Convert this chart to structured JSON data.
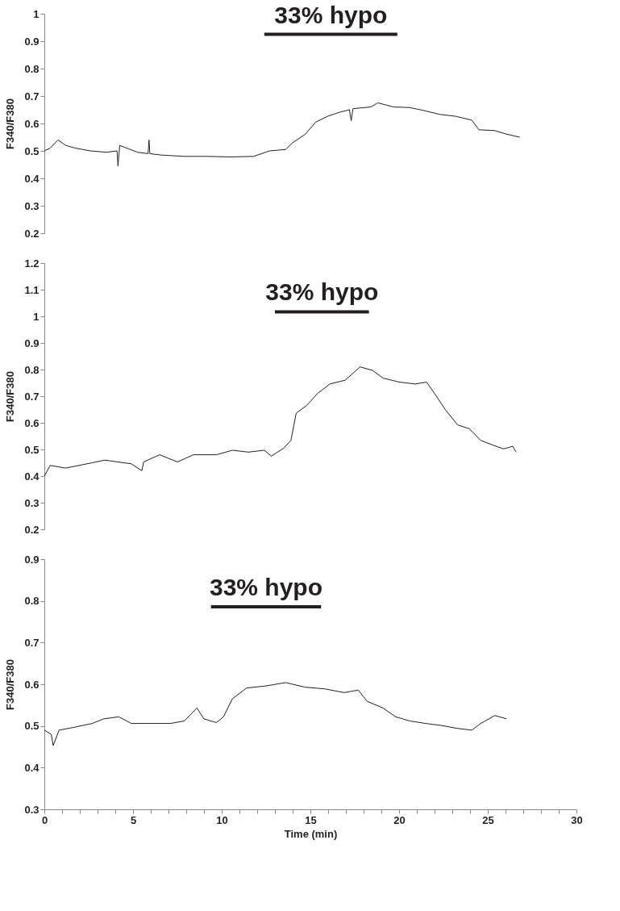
{
  "chart_data": [
    {
      "type": "line",
      "ylabel": "F340/F380",
      "xlim": [
        0,
        30
      ],
      "ylim": [
        0.2,
        1
      ],
      "yticks": [
        0.2,
        0.3,
        0.4,
        0.5,
        0.6,
        0.7,
        0.8,
        0.9,
        1
      ],
      "tick_labels": "y",
      "grid": false,
      "legend": false,
      "annotations": [
        {
          "text": "33% hypo",
          "x": 16.15,
          "y": 0.925
        }
      ],
      "series": [
        {
          "color": "#231f20",
          "x": [
            0,
            0.33,
            0.77,
            1.2,
            1.75,
            2.6,
            3.5,
            4.1,
            4.15,
            4.25,
            5.25,
            5.85,
            5.9,
            5.95,
            6.56,
            7.9,
            9.2,
            10.5,
            11.8,
            12.7,
            13.6,
            14.0,
            14.7,
            15.3,
            15.97,
            16.6,
            17.2,
            17.3,
            17.4,
            18.4,
            18.8,
            19.7,
            20.6,
            21.4,
            22.3,
            23.2,
            24.1,
            24.5,
            25.4,
            26.0,
            26.8
          ],
          "values": [
            0.5,
            0.51,
            0.54,
            0.52,
            0.51,
            0.5,
            0.495,
            0.5,
            0.445,
            0.52,
            0.495,
            0.49,
            0.54,
            0.49,
            0.485,
            0.48,
            0.48,
            0.478,
            0.48,
            0.5,
            0.505,
            0.53,
            0.56,
            0.605,
            0.626,
            0.64,
            0.65,
            0.61,
            0.654,
            0.66,
            0.675,
            0.66,
            0.658,
            0.647,
            0.633,
            0.626,
            0.612,
            0.577,
            0.574,
            0.562,
            0.55
          ]
        },
        {
          "type": "line",
          "color": "#231f20",
          "x": [
            12.4,
            19.9
          ],
          "values": [
            0.925,
            0.925
          ]
        }
      ]
    },
    {
      "type": "line",
      "ylabel": "F340/F380",
      "xlim": [
        0,
        30
      ],
      "ylim": [
        0.2,
        1.2
      ],
      "yticks": [
        0.2,
        0.3,
        0.4,
        0.5,
        0.6,
        0.7,
        0.8,
        0.9,
        1,
        1.1,
        1.2
      ],
      "tick_labels": "y",
      "grid": false,
      "legend": false,
      "annotations": [
        {
          "text": "33% hypo",
          "x": 15.65,
          "y": 1.017
        }
      ],
      "series": [
        {
          "color": "#231f20",
          "x": [
            0,
            0.33,
            1.2,
            2.7,
            3.4,
            4.9,
            5.5,
            5.6,
            6.5,
            7.5,
            8.4,
            9.7,
            10.6,
            11.5,
            12.4,
            12.8,
            13.5,
            13.9,
            14.2,
            14.8,
            15.4,
            16.1,
            16.96,
            17.8,
            18.5,
            19.1,
            20.0,
            20.9,
            21.55,
            22.0,
            22.6,
            23.3,
            23.96,
            24.6,
            25.3,
            25.9,
            26.4,
            26.6
          ],
          "values": [
            0.4,
            0.44,
            0.43,
            0.45,
            0.46,
            0.446,
            0.42,
            0.453,
            0.48,
            0.453,
            0.48,
            0.48,
            0.497,
            0.49,
            0.497,
            0.475,
            0.505,
            0.534,
            0.636,
            0.666,
            0.71,
            0.746,
            0.76,
            0.81,
            0.797,
            0.768,
            0.753,
            0.746,
            0.753,
            0.71,
            0.65,
            0.592,
            0.578,
            0.534,
            0.516,
            0.502,
            0.512,
            0.49
          ]
        },
        {
          "type": "line",
          "color": "#231f20",
          "x": [
            13.0,
            18.3
          ],
          "values": [
            1.017,
            1.017
          ]
        }
      ]
    },
    {
      "type": "line",
      "xlabel": "Time (min)",
      "ylabel": "F340/F380",
      "xlim": [
        0,
        30
      ],
      "ylim": [
        0.3,
        0.9
      ],
      "yticks": [
        0.3,
        0.4,
        0.5,
        0.6,
        0.7,
        0.8,
        0.9
      ],
      "grid": false,
      "legend": false,
      "xticks": [
        0,
        {
          "value": 1,
          "label": null
        },
        {
          "value": 2,
          "label": null
        },
        {
          "value": 3,
          "label": null
        },
        {
          "value": 4,
          "label": null
        },
        5,
        {
          "value": 6,
          "label": null
        },
        {
          "value": 7,
          "label": null
        },
        {
          "value": 8,
          "label": null
        },
        {
          "value": 9,
          "label": null
        },
        10,
        {
          "value": 11,
          "label": null
        },
        {
          "value": 12,
          "label": null
        },
        {
          "value": 13,
          "label": null
        },
        {
          "value": 14,
          "label": null
        },
        15,
        {
          "value": 16,
          "label": null
        },
        {
          "value": 17,
          "label": null
        },
        {
          "value": 18,
          "label": null
        },
        {
          "value": 19,
          "label": null
        },
        20,
        {
          "value": 21,
          "label": null
        },
        {
          "value": 22,
          "label": null
        },
        {
          "value": 23,
          "label": null
        },
        {
          "value": 24,
          "label": null
        },
        25,
        {
          "value": 26,
          "label": null
        },
        {
          "value": 27,
          "label": null
        },
        {
          "value": 28,
          "label": null
        },
        {
          "value": 29,
          "label": null
        },
        30
      ],
      "annotations": [
        {
          "text": "33% hypo",
          "x": 12.5,
          "y": 0.786
        }
      ],
      "series": [
        {
          "color": "#231f20",
          "x": [
            0,
            0.39,
            0.5,
            0.83,
            1.6,
            2.7,
            3.35,
            4.2,
            4.9,
            6.0,
            7.1,
            7.9,
            8.6,
            9.0,
            9.7,
            10.1,
            10.6,
            11.4,
            12.5,
            13.6,
            14.7,
            15.8,
            16.9,
            17.7,
            18.2,
            19.1,
            19.8,
            20.6,
            21.5,
            22.4,
            23.3,
            24.1,
            24.6,
            25.4,
            26.06
          ],
          "values": [
            0.49,
            0.48,
            0.453,
            0.49,
            0.496,
            0.506,
            0.517,
            0.522,
            0.506,
            0.506,
            0.506,
            0.512,
            0.543,
            0.517,
            0.508,
            0.522,
            0.565,
            0.591,
            0.596,
            0.604,
            0.593,
            0.589,
            0.58,
            0.586,
            0.559,
            0.543,
            0.522,
            0.512,
            0.506,
            0.501,
            0.494,
            0.49,
            0.506,
            0.525,
            0.517
          ]
        },
        {
          "type": "line",
          "color": "#231f20",
          "x": [
            9.4,
            15.6
          ],
          "values": [
            0.786,
            0.786
          ]
        }
      ]
    }
  ]
}
